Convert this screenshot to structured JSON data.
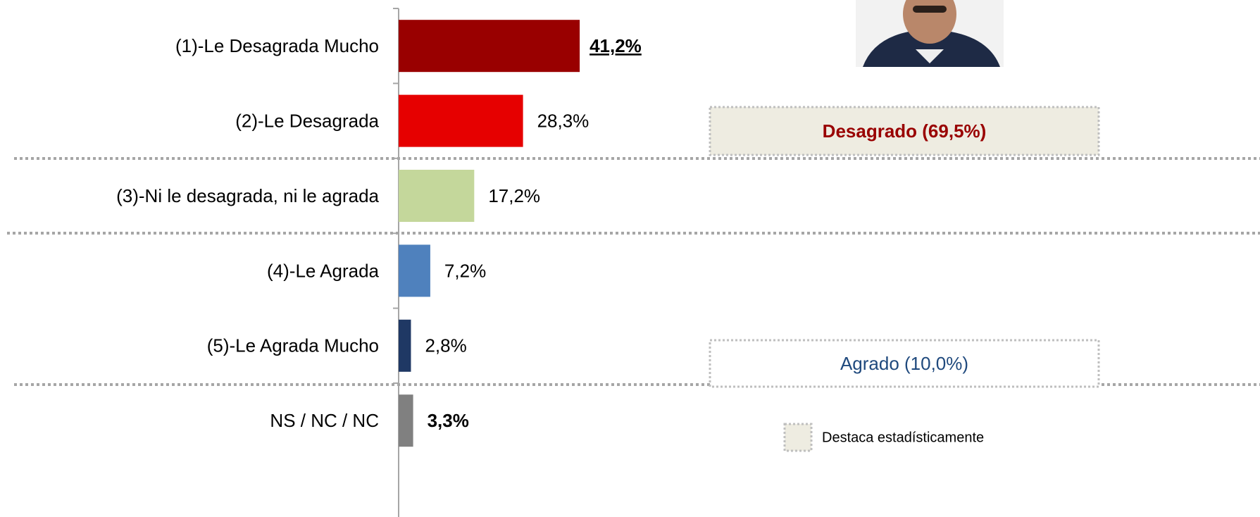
{
  "chart_data": {
    "type": "bar",
    "orientation": "horizontal",
    "categories": [
      "(1)-Le Desagrada Mucho",
      "(2)-Le Desagrada",
      "(3)-Ni le desagrada, ni le agrada",
      "(4)-Le Agrada",
      "(5)-Le Agrada Mucho",
      "NS / NC / NC"
    ],
    "values": [
      41.2,
      28.3,
      17.2,
      7.2,
      2.8,
      3.3
    ],
    "value_labels": [
      "41,2%",
      "28,3%",
      "17,2%",
      "7,2%",
      "2,8%",
      "3,3%"
    ],
    "colors": [
      "#990000",
      "#e60000",
      "#c4d79b",
      "#4f81bd",
      "#1f3864",
      "#808080"
    ],
    "annotations": [
      "Desagrado (69,5%)",
      "Agrado (10,0%)"
    ],
    "legend": "Destaca estadísticamente"
  }
}
